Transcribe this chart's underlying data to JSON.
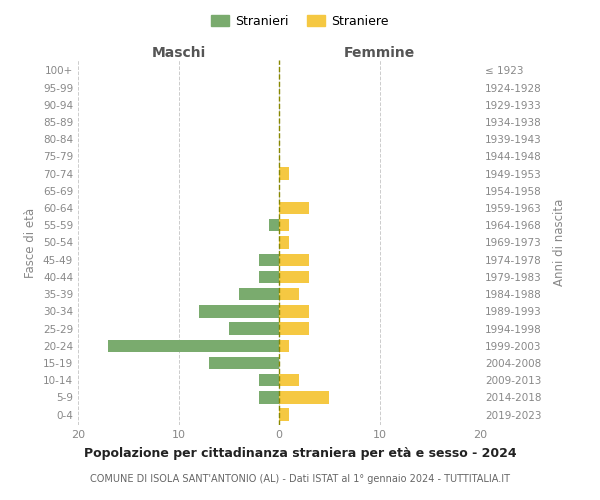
{
  "age_groups": [
    "0-4",
    "5-9",
    "10-14",
    "15-19",
    "20-24",
    "25-29",
    "30-34",
    "35-39",
    "40-44",
    "45-49",
    "50-54",
    "55-59",
    "60-64",
    "65-69",
    "70-74",
    "75-79",
    "80-84",
    "85-89",
    "90-94",
    "95-99",
    "100+"
  ],
  "birth_years": [
    "2019-2023",
    "2014-2018",
    "2009-2013",
    "2004-2008",
    "1999-2003",
    "1994-1998",
    "1989-1993",
    "1984-1988",
    "1979-1983",
    "1974-1978",
    "1969-1973",
    "1964-1968",
    "1959-1963",
    "1954-1958",
    "1949-1953",
    "1944-1948",
    "1939-1943",
    "1934-1938",
    "1929-1933",
    "1924-1928",
    "≤ 1923"
  ],
  "maschi": [
    0,
    2,
    2,
    7,
    17,
    5,
    8,
    4,
    2,
    2,
    0,
    1,
    0,
    0,
    0,
    0,
    0,
    0,
    0,
    0,
    0
  ],
  "femmine": [
    1,
    5,
    2,
    0,
    1,
    3,
    3,
    2,
    3,
    3,
    1,
    1,
    3,
    0,
    1,
    0,
    0,
    0,
    0,
    0,
    0
  ],
  "color_maschi": "#7aab6e",
  "color_femmine": "#f5c842",
  "title": "Popolazione per cittadinanza straniera per età e sesso - 2024",
  "subtitle": "COMUNE DI ISOLA SANT'ANTONIO (AL) - Dati ISTAT al 1° gennaio 2024 - TUTTITALIA.IT",
  "xlabel_left": "Maschi",
  "xlabel_right": "Femmine",
  "ylabel_left": "Fasce di età",
  "ylabel_right": "Anni di nascita",
  "legend_maschi": "Stranieri",
  "legend_femmine": "Straniere",
  "xlim": 20,
  "background_color": "#ffffff",
  "grid_color": "#cccccc"
}
